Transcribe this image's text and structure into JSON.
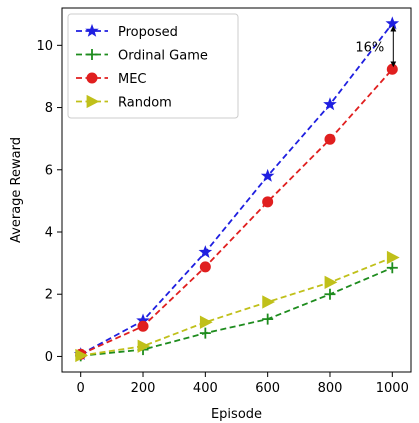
{
  "chart_data": {
    "type": "line",
    "title": "",
    "xlabel": "Episode",
    "ylabel": "Average Reward",
    "x": [
      0,
      200,
      400,
      600,
      800,
      1000
    ],
    "xticks": [
      "0",
      "200",
      "400",
      "600",
      "800",
      "1000"
    ],
    "yticks": [
      "0",
      "2",
      "4",
      "6",
      "8",
      "10"
    ],
    "xlim": [
      -60,
      1060
    ],
    "ylim": [
      -0.5,
      11.2
    ],
    "grid": false,
    "legend_position": "top-left",
    "series": [
      {
        "name": "Proposed",
        "values": [
          0.07,
          1.15,
          3.35,
          5.8,
          8.1,
          10.7
        ],
        "color": "#1f1fe0",
        "marker": "star"
      },
      {
        "name": "Ordinal Game",
        "values": [
          0.02,
          0.22,
          0.75,
          1.2,
          2.0,
          2.85
        ],
        "color": "#1e8c1e",
        "marker": "plus"
      },
      {
        "name": "MEC",
        "values": [
          0.07,
          0.97,
          2.88,
          4.97,
          6.98,
          9.23
        ],
        "color": "#e01f1f",
        "marker": "circle"
      },
      {
        "name": "Random",
        "values": [
          0.03,
          0.33,
          1.1,
          1.75,
          2.38,
          3.18
        ],
        "color": "#c0c01a",
        "marker": "triangle-right"
      }
    ],
    "annotation": {
      "text": "16%",
      "x": 1000,
      "y_from": 9.23,
      "y_to": 10.7
    }
  }
}
